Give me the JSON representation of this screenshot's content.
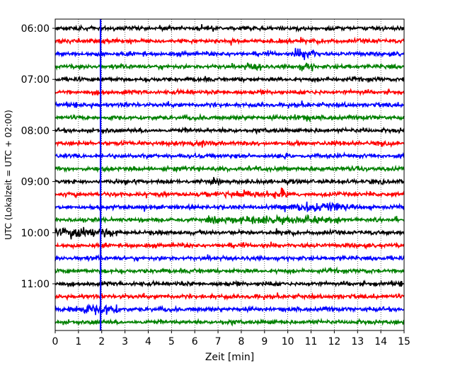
{
  "chart_data": {
    "type": "line",
    "title": "",
    "xlabel": "Zeit  [min]",
    "ylabel": "UTC (Lokalzeit = UTC + 02:00)",
    "xlim": [
      0,
      15
    ],
    "x_ticks": [
      0,
      1,
      2,
      3,
      4,
      5,
      6,
      7,
      8,
      9,
      10,
      11,
      12,
      13,
      14,
      15
    ],
    "x_tick_labels": [
      "0",
      "1",
      "2",
      "3",
      "4",
      "5",
      "6",
      "7",
      "8",
      "9",
      "10",
      "11",
      "12",
      "13",
      "14",
      "15"
    ],
    "y_tick_labels": [
      "06:00",
      "07:00",
      "08:00",
      "09:00",
      "10:00",
      "11:00"
    ],
    "y_ticks_minutes": [
      360,
      420,
      480,
      540,
      600,
      660
    ],
    "trace_interval_minutes": 15,
    "start_minutes": 360,
    "trace_count": 24,
    "color_cycle": [
      "#000000",
      "#ff0000",
      "#0000ff",
      "#008000"
    ],
    "grid": "vertical dotted",
    "event_marker": {
      "x_minutes": 1.95,
      "color": "#0000ff"
    },
    "notable_signals": [
      {
        "start": "06:30",
        "x_from": 10.2,
        "x_to": 11.2,
        "level": "high"
      },
      {
        "start": "06:45",
        "x_from": 8.1,
        "x_to": 8.9,
        "level": "medium"
      },
      {
        "start": "06:45",
        "x_from": 10.5,
        "x_to": 11.2,
        "level": "medium"
      },
      {
        "start": "07:45",
        "x_from": 10.3,
        "x_to": 11.0,
        "level": "medium"
      },
      {
        "start": "08:15",
        "x_from": 5.6,
        "x_to": 6.4,
        "level": "medium"
      },
      {
        "start": "09:15",
        "x_from": 6.8,
        "x_to": 9.2,
        "level": "medium"
      },
      {
        "start": "09:15",
        "x_from": 9.4,
        "x_to": 10.0,
        "level": "high"
      },
      {
        "start": "09:30",
        "x_from": 9.8,
        "x_to": 12.6,
        "level": "high"
      },
      {
        "start": "09:45",
        "x_from": 6.5,
        "x_to": 12.5,
        "level": "medium"
      },
      {
        "start": "10:00",
        "x_from": 0.0,
        "x_to": 2.7,
        "level": "high"
      },
      {
        "start": "11:30",
        "x_from": 0.5,
        "x_to": 2.8,
        "level": "high"
      }
    ]
  }
}
